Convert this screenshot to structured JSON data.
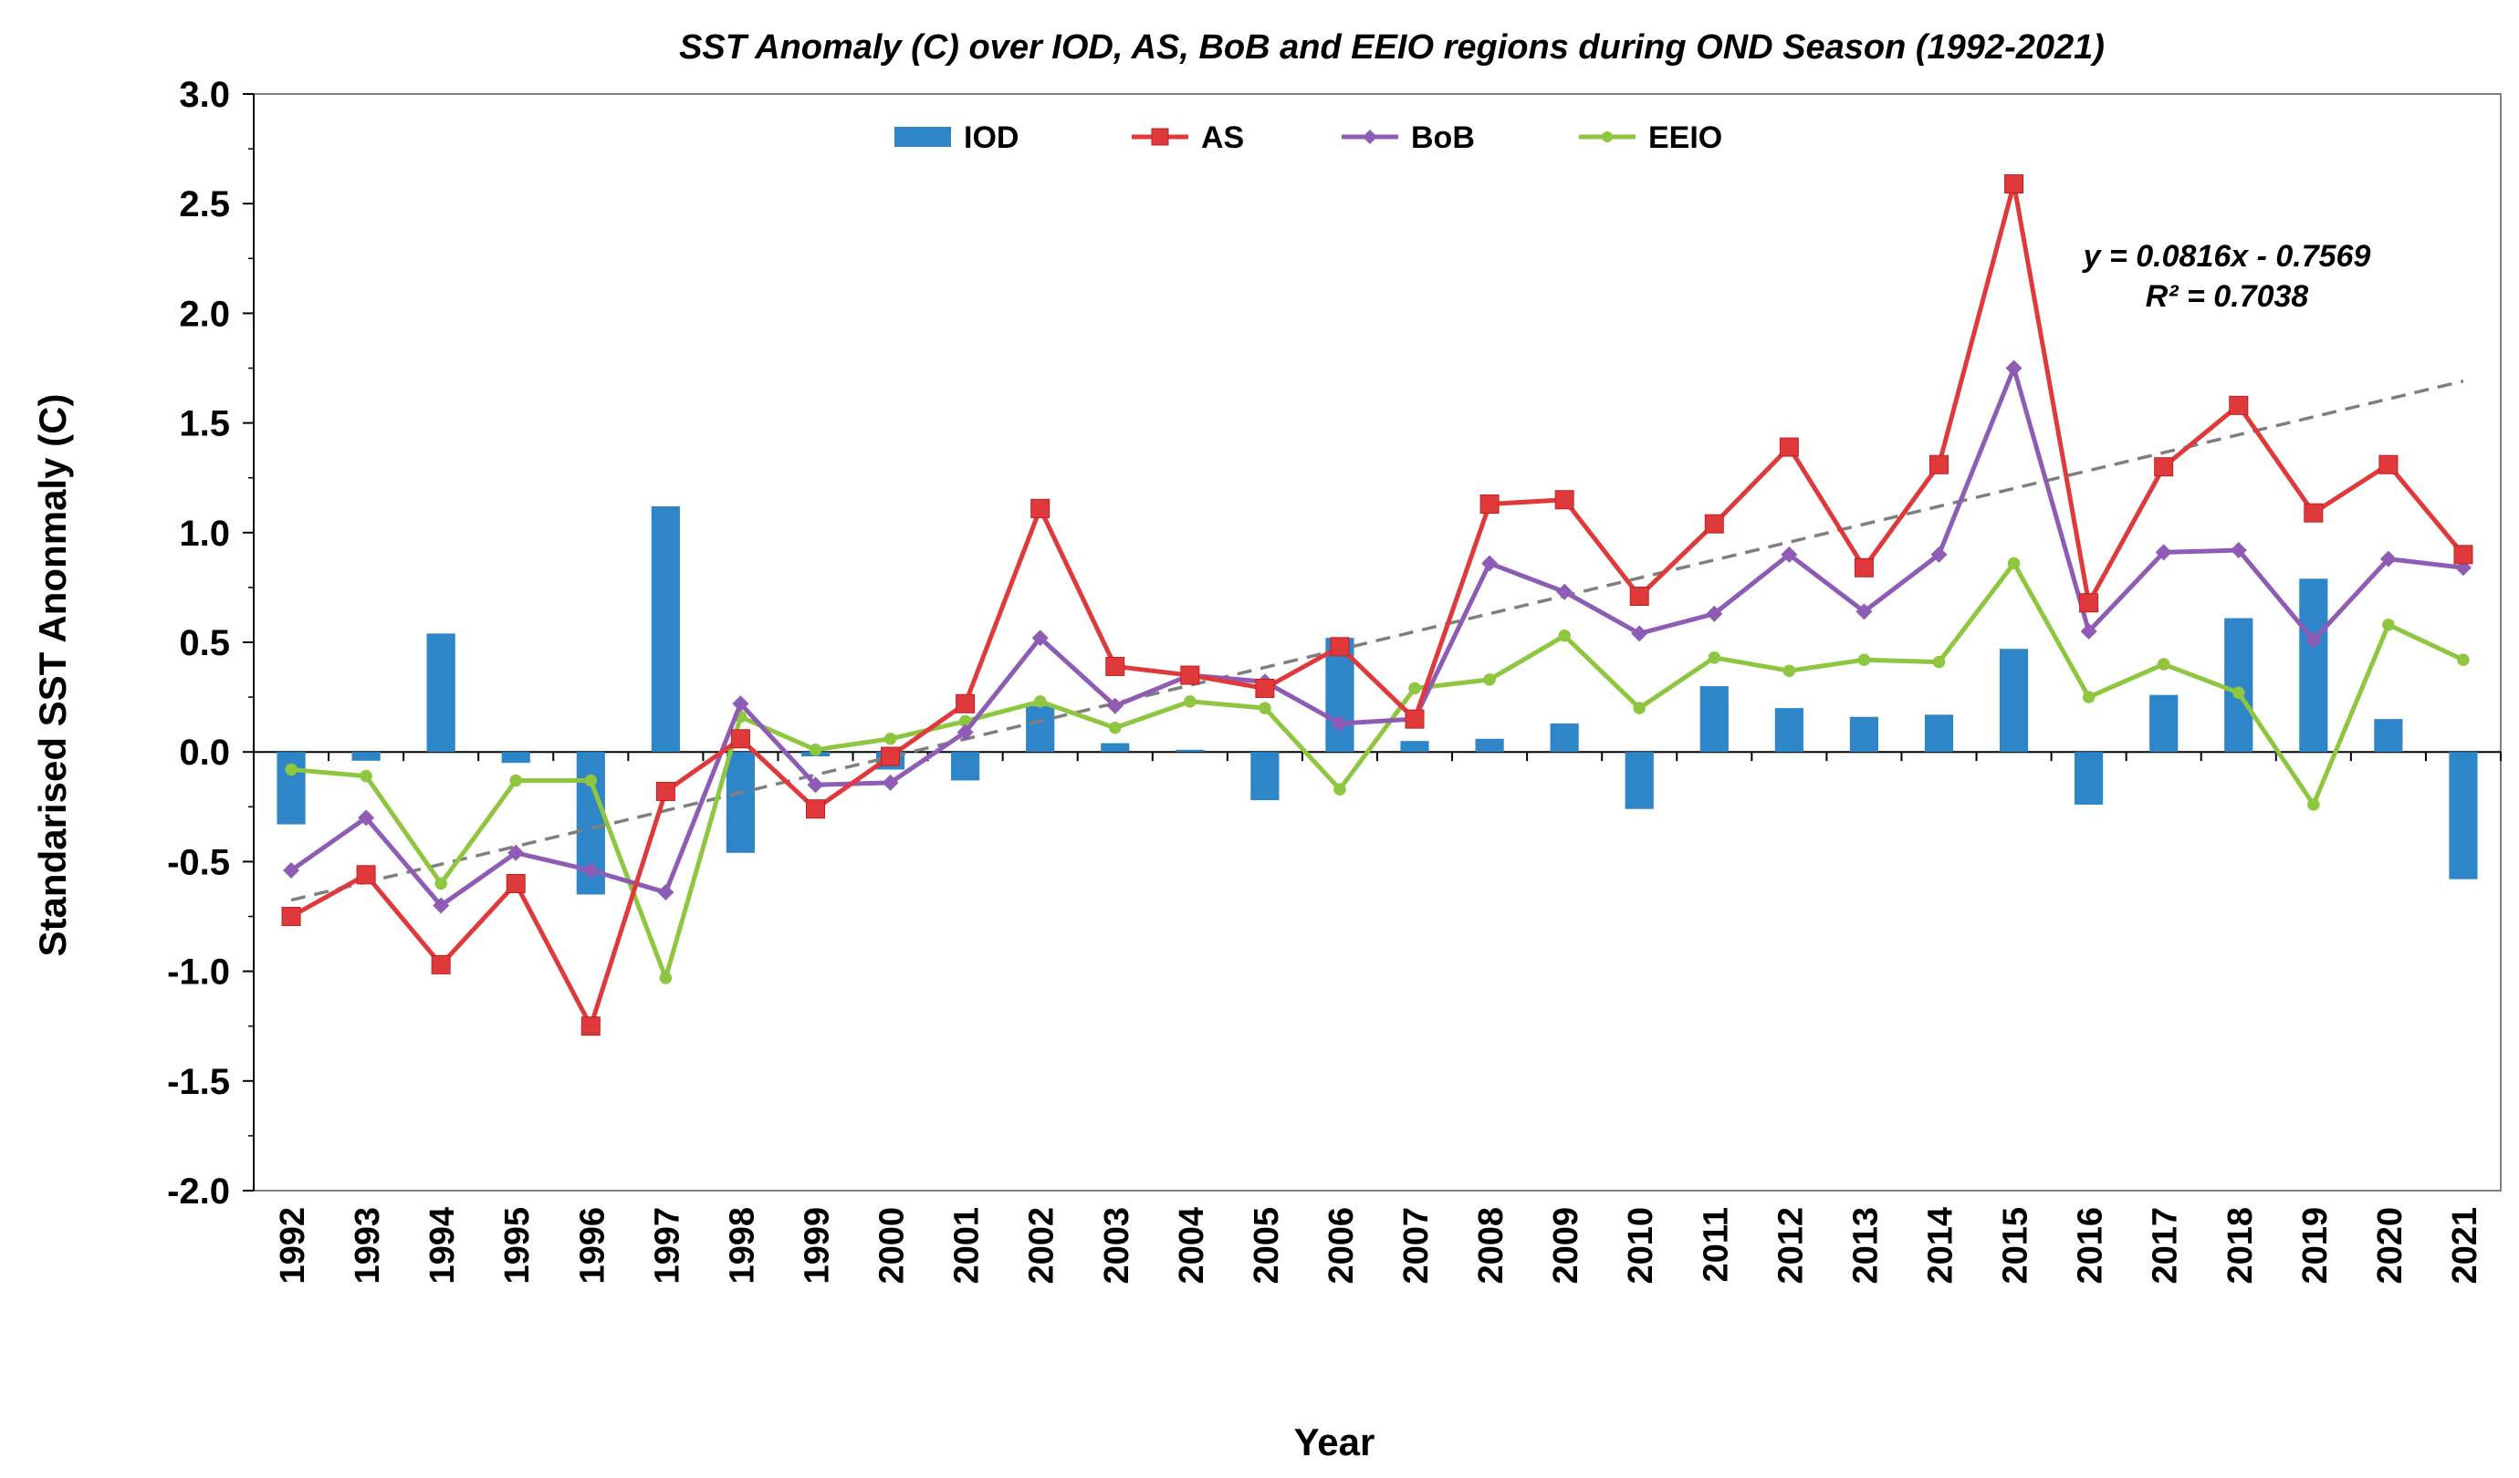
{
  "chart_data": {
    "type": "bar+line",
    "title": "SST Anomaly (C) over IOD, AS, BoB and EEIO regions during OND Season (1992-2021)",
    "xlabel": "Year",
    "ylabel": "Standarised SST Anonmaly (C)",
    "ylim": [
      -2.0,
      3.0
    ],
    "ytick_step": 0.5,
    "ytick_labels": [
      "-2.0",
      "-1.5",
      "-1.0",
      "-0.5",
      "0.0",
      "0.5",
      "1.0",
      "1.5",
      "2.0",
      "2.5",
      "3.0"
    ],
    "legend_position": "top",
    "categories": [
      "1992",
      "1993",
      "1994",
      "1995",
      "1996",
      "1997",
      "1998",
      "1999",
      "2000",
      "2001",
      "2002",
      "2003",
      "2004",
      "2005",
      "2006",
      "2007",
      "2008",
      "2009",
      "2010",
      "2011",
      "2012",
      "2013",
      "2014",
      "2015",
      "2016",
      "2017",
      "2018",
      "2019",
      "2020",
      "2021"
    ],
    "series": [
      {
        "name": "IOD",
        "kind": "bar",
        "color": "#2e86c8",
        "values": [
          -0.33,
          -0.04,
          0.54,
          -0.05,
          -0.65,
          1.12,
          -0.46,
          -0.02,
          -0.08,
          -0.13,
          0.21,
          0.04,
          0.01,
          -0.22,
          0.52,
          0.05,
          0.06,
          0.13,
          -0.26,
          0.3,
          0.2,
          0.16,
          0.17,
          0.47,
          -0.24,
          0.26,
          0.61,
          0.79,
          0.15,
          -0.58
        ]
      },
      {
        "name": "AS",
        "kind": "line",
        "marker": "square",
        "color": "#e0393b",
        "values": [
          -0.75,
          -0.56,
          -0.97,
          -0.6,
          -1.25,
          -0.18,
          0.06,
          -0.26,
          -0.02,
          0.22,
          1.11,
          0.39,
          0.35,
          0.29,
          0.48,
          0.15,
          1.13,
          1.15,
          0.71,
          1.04,
          1.39,
          0.84,
          1.31,
          2.59,
          0.68,
          1.3,
          1.58,
          1.09,
          1.31,
          0.9
        ]
      },
      {
        "name": "BoB",
        "kind": "line",
        "marker": "diamond",
        "color": "#8e5bb5",
        "values": [
          -0.54,
          -0.3,
          -0.7,
          -0.46,
          -0.54,
          -0.64,
          0.22,
          -0.15,
          -0.14,
          0.09,
          0.52,
          0.21,
          0.35,
          0.32,
          0.13,
          0.15,
          0.86,
          0.73,
          0.54,
          0.63,
          0.9,
          0.64,
          0.9,
          1.75,
          0.55,
          0.91,
          0.92,
          0.51,
          0.88,
          0.84
        ]
      },
      {
        "name": "EEIO",
        "kind": "line",
        "marker": "circle",
        "color": "#8ec63f",
        "values": [
          -0.08,
          -0.11,
          -0.6,
          -0.13,
          -0.13,
          -1.03,
          0.16,
          0.01,
          0.06,
          0.14,
          0.23,
          0.11,
          0.23,
          0.2,
          -0.17,
          0.29,
          0.33,
          0.53,
          0.2,
          0.43,
          0.37,
          0.42,
          0.41,
          0.86,
          0.25,
          0.4,
          0.27,
          -0.24,
          0.58,
          0.42
        ]
      }
    ],
    "trendline": {
      "series": "AS",
      "equation": "y = 0.0816x - 0.7569",
      "r_squared": "R² = 0.7038",
      "slope": 0.0816,
      "intercept": -0.7569,
      "color": "#7f7f7f",
      "style": "dashed"
    }
  }
}
